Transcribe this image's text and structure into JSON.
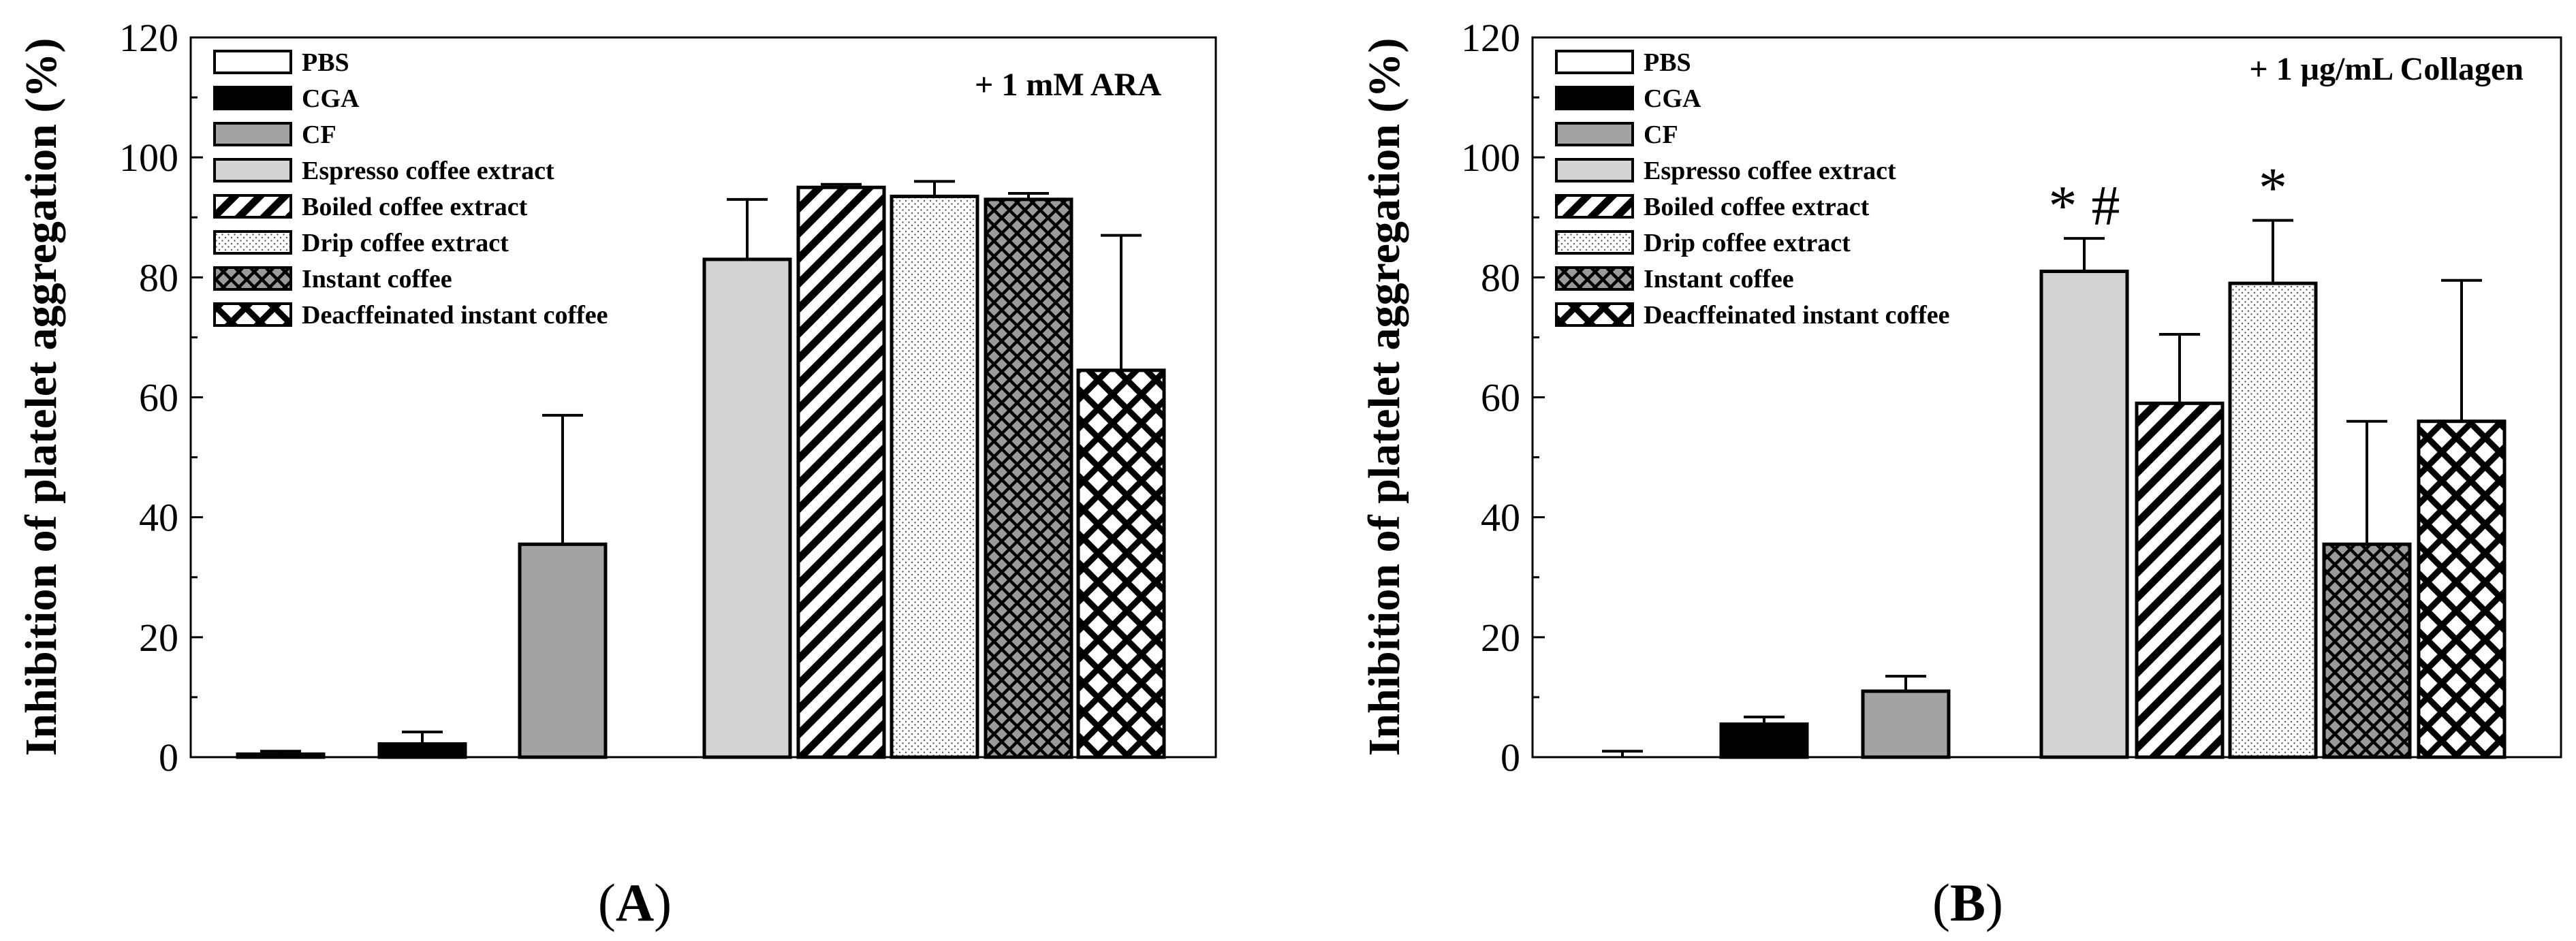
{
  "chart_data": [
    {
      "type": "bar",
      "panel": "A",
      "condition": "+ 1 mM ARA",
      "ylabel": "Inhibition of platelet aggregation (%)",
      "xlabel": "",
      "ylim": [
        0,
        120
      ],
      "yticks": [
        "0",
        "20",
        "40",
        "60",
        "80",
        "100",
        "120"
      ],
      "grid": false,
      "legend_position": "top-left",
      "categories": [
        "PBS",
        "CGA",
        "CF",
        "Espresso coffee extract",
        "Boiled coffee extract",
        "Drip coffee extract",
        "Instant coffee",
        "Deacffeinated instant coffee"
      ],
      "values": [
        0.5,
        2.2,
        35.5,
        83,
        95,
        93.5,
        93,
        64.5
      ],
      "errors": [
        0.5,
        2,
        21.5,
        10,
        0.5,
        2.5,
        1,
        22.5
      ],
      "significance": [
        "",
        "",
        "",
        "",
        "",
        "",
        "",
        ""
      ]
    },
    {
      "type": "bar",
      "panel": "B",
      "condition": "+ 1 μg/mL Collagen",
      "ylabel": "Inhibition of platelet aggregation (%)",
      "xlabel": "",
      "ylim": [
        0,
        120
      ],
      "yticks": [
        "0",
        "20",
        "40",
        "60",
        "80",
        "100",
        "120"
      ],
      "grid": false,
      "legend_position": "top-left",
      "categories": [
        "PBS",
        "CGA",
        "CF",
        "Espresso coffee extract",
        "Boiled coffee extract",
        "Drip coffee extract",
        "Instant coffee",
        "Deacffeinated instant coffee"
      ],
      "values": [
        0,
        5.5,
        11,
        81,
        59,
        79,
        35.5,
        56
      ],
      "errors": [
        1,
        1.2,
        2.5,
        5.5,
        11.5,
        10.5,
        20.5,
        23.5
      ],
      "significance": [
        "",
        "",
        "",
        "* #",
        "",
        "*",
        "",
        ""
      ]
    }
  ],
  "panel_labels": [
    "(A)",
    "(B)"
  ],
  "legend": {
    "items": [
      {
        "label": "PBS",
        "pattern": "empty"
      },
      {
        "label": "CGA",
        "pattern": "solid-black"
      },
      {
        "label": "CF",
        "pattern": "solid-dark-gray"
      },
      {
        "label": "Espresso coffee extract",
        "pattern": "solid-light-gray"
      },
      {
        "label": "Boiled coffee extract",
        "pattern": "diagonal-hatch"
      },
      {
        "label": "Drip coffee extract",
        "pattern": "dots"
      },
      {
        "label": "Instant coffee",
        "pattern": "dense-crosshatch"
      },
      {
        "label": "Deacffeinated instant coffee",
        "pattern": "open-crosshatch"
      }
    ]
  },
  "colors": {
    "background": "#ffffff",
    "ink": "#000000",
    "cf_gray": "#a3a3a3",
    "espresso_gray": "#d3d3d3"
  }
}
